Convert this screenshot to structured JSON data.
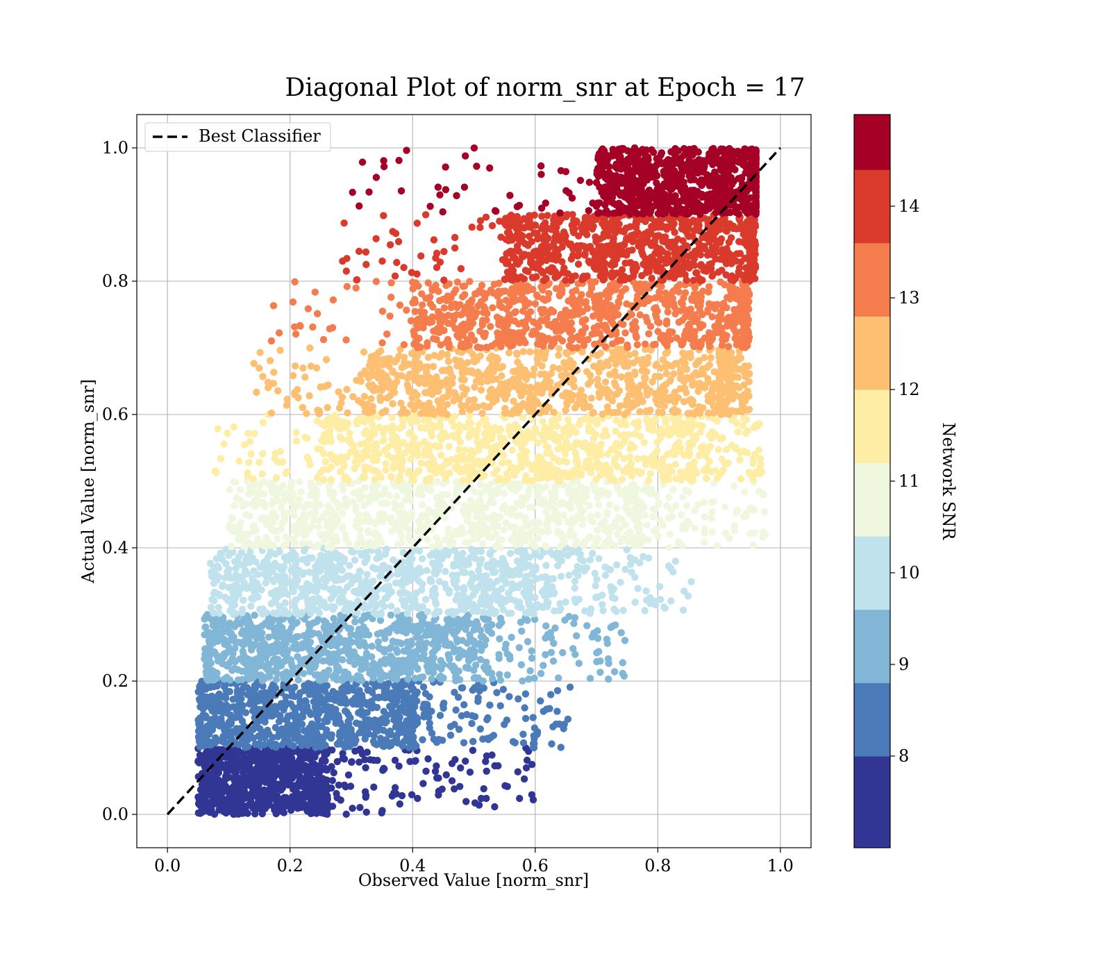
{
  "chart_data": {
    "type": "scatter",
    "title": "Diagonal Plot of norm_snr at Epoch = 17",
    "xlabel": "Observed Value [norm_snr]",
    "ylabel": "Actual Value [norm_snr]",
    "xlim": [
      -0.05,
      1.05
    ],
    "ylim": [
      -0.05,
      1.05
    ],
    "xticks": [
      0.0,
      0.2,
      0.4,
      0.6,
      0.8,
      1.0
    ],
    "xtick_labels": [
      "0.0",
      "0.2",
      "0.4",
      "0.6",
      "0.8",
      "1.0"
    ],
    "yticks": [
      0.0,
      0.2,
      0.4,
      0.6,
      0.8,
      1.0
    ],
    "ytick_labels": [
      "0.0",
      "0.2",
      "0.4",
      "0.6",
      "0.8",
      "1.0"
    ],
    "grid": true,
    "legend": {
      "placement": "upper-left",
      "entries": [
        {
          "label": "Best Classifier",
          "style": "dashed",
          "color": "#000000"
        }
      ]
    },
    "reference_line": {
      "name": "Best Classifier",
      "points": [
        [
          0.0,
          0.0
        ],
        [
          1.0,
          1.0
        ]
      ],
      "style": "dashed",
      "color": "#000000"
    },
    "colorbar": {
      "label": "Network SNR",
      "range": [
        7.0,
        15.0
      ],
      "ticks": [
        8,
        9,
        10,
        11,
        12,
        13,
        14
      ],
      "tick_labels": [
        "8",
        "9",
        "10",
        "11",
        "12",
        "13",
        "14"
      ],
      "bands": [
        {
          "from": 7.0,
          "to": 8.0,
          "color": "#313695"
        },
        {
          "from": 8.0,
          "to": 8.8,
          "color": "#4a7ab7"
        },
        {
          "from": 8.8,
          "to": 9.6,
          "color": "#82b6d6"
        },
        {
          "from": 9.6,
          "to": 10.4,
          "color": "#c0e2ed"
        },
        {
          "from": 10.4,
          "to": 11.2,
          "color": "#eff8df"
        },
        {
          "from": 11.2,
          "to": 12.0,
          "color": "#feeda4"
        },
        {
          "from": 12.0,
          "to": 12.8,
          "color": "#fdbf71"
        },
        {
          "from": 12.8,
          "to": 13.6,
          "color": "#f57c4d"
        },
        {
          "from": 13.6,
          "to": 14.4,
          "color": "#da3a2b"
        },
        {
          "from": 14.4,
          "to": 15.0,
          "color": "#a50026"
        }
      ]
    },
    "scatter_bands": [
      {
        "y_range": [
          0.0,
          0.1
        ],
        "x_range": [
          0.05,
          0.6
        ],
        "core_x_range": [
          0.06,
          0.26
        ],
        "color": "#313695"
      },
      {
        "y_range": [
          0.1,
          0.2
        ],
        "x_range": [
          0.05,
          0.66
        ],
        "core_x_range": [
          0.06,
          0.4
        ],
        "color": "#4a7ab7"
      },
      {
        "y_range": [
          0.2,
          0.3
        ],
        "x_range": [
          0.06,
          0.75
        ],
        "core_x_range": [
          0.07,
          0.5
        ],
        "color": "#82b6d6"
      },
      {
        "y_range": [
          0.3,
          0.4
        ],
        "x_range": [
          0.07,
          0.86
        ],
        "core_x_range": [
          0.1,
          0.6
        ],
        "color": "#c0e2ed"
      },
      {
        "y_range": [
          0.4,
          0.5
        ],
        "x_range": [
          0.1,
          0.99
        ],
        "core_x_range": [
          0.14,
          0.76
        ],
        "color": "#eff8df"
      },
      {
        "y_range": [
          0.5,
          0.6
        ],
        "x_range": [
          0.07,
          0.97
        ],
        "core_x_range": [
          0.25,
          0.85
        ],
        "color": "#feeda4"
      },
      {
        "y_range": [
          0.6,
          0.7
        ],
        "x_range": [
          0.14,
          0.95
        ],
        "core_x_range": [
          0.32,
          0.9
        ],
        "color": "#fdbf71"
      },
      {
        "y_range": [
          0.7,
          0.8
        ],
        "x_range": [
          0.16,
          0.95
        ],
        "core_x_range": [
          0.4,
          0.94
        ],
        "color": "#f57c4d"
      },
      {
        "y_range": [
          0.8,
          0.9
        ],
        "x_range": [
          0.28,
          0.96
        ],
        "core_x_range": [
          0.55,
          0.95
        ],
        "color": "#da3a2b"
      },
      {
        "y_range": [
          0.9,
          1.0
        ],
        "x_range": [
          0.29,
          0.96
        ],
        "core_x_range": [
          0.7,
          0.96
        ],
        "color": "#a50026"
      }
    ]
  }
}
